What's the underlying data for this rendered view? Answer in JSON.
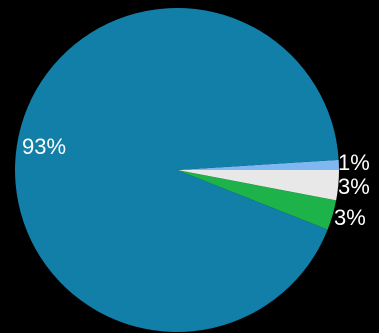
{
  "chart_data": {
    "type": "pie",
    "title": "",
    "values": [
      1,
      3,
      3,
      93
    ],
    "labels": [
      "1%",
      "3%",
      "3%",
      "93%"
    ],
    "colors": [
      "#7fb7f0",
      "#e8e8e8",
      "#1db24a",
      "#127fa8"
    ],
    "start_angle_deg": -3.6,
    "direction": "clockwise",
    "legend": "none"
  }
}
